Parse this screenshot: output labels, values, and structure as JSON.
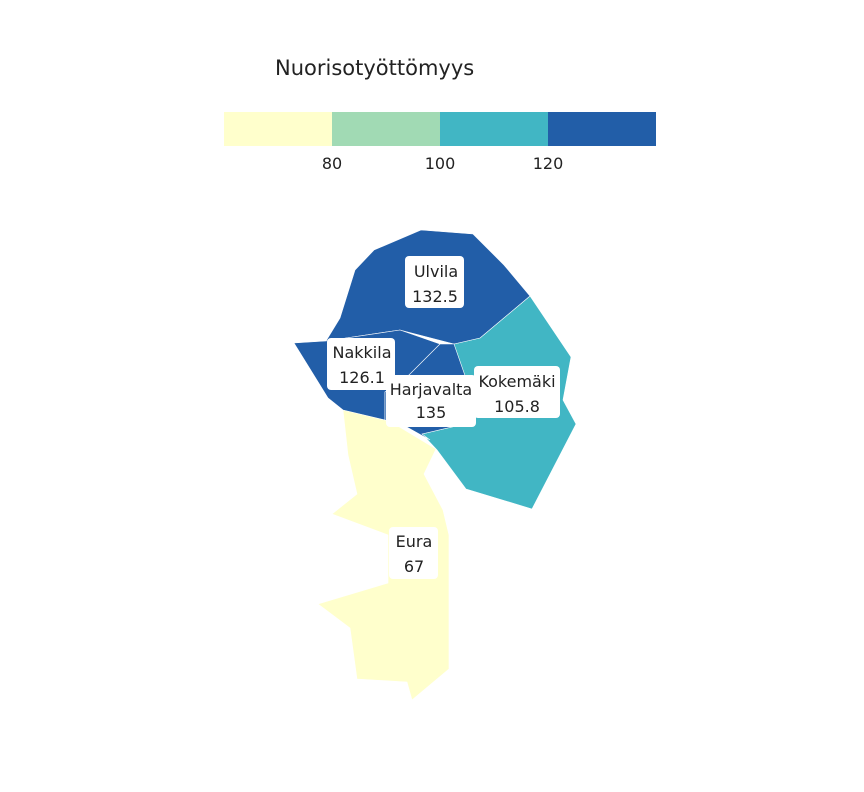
{
  "legend": {
    "title": "Nuorisotyöttömyys",
    "bins": [
      {
        "color": "#ffffcc"
      },
      {
        "color": "#a1dab4"
      },
      {
        "color": "#41b6c4"
      },
      {
        "color": "#225ea8"
      }
    ],
    "ticks": [
      "80",
      "100",
      "120"
    ]
  },
  "regions": [
    {
      "name": "Eura",
      "value": "67",
      "color": "#ffffcc"
    },
    {
      "name": "Kokemäki",
      "value": "105.8",
      "color": "#41b6c4"
    },
    {
      "name": "Ulvila",
      "value": "132.5",
      "color": "#225ea8"
    },
    {
      "name": "Nakkila",
      "value": "126.1",
      "color": "#225ea8"
    },
    {
      "name": "Harjavalta",
      "value": "135",
      "color": "#225ea8"
    }
  ]
}
